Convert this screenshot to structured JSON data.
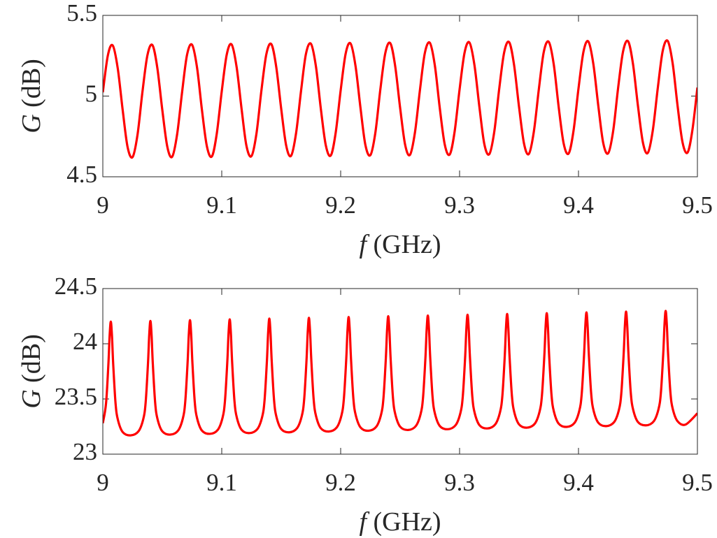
{
  "chart_data": [
    {
      "type": "line",
      "xlabel": "f (GHz)",
      "ylabel": "G (dB)",
      "x": [
        9,
        9.0042,
        9.0083,
        9.0125,
        9.0167,
        9.0208,
        9.025,
        9.0292,
        9.0333,
        9.0375,
        9.0417,
        9.0458,
        9.05,
        9.0542,
        9.0583,
        9.0625,
        9.0667,
        9.0708,
        9.075,
        9.0792,
        9.0833,
        9.0875,
        9.0917,
        9.0958,
        9.1,
        9.1042,
        9.1083,
        9.1125,
        9.1167,
        9.1208,
        9.125,
        9.1292,
        9.1333,
        9.1375,
        9.1417,
        9.1458,
        9.15,
        9.1542,
        9.1583,
        9.1625,
        9.1667,
        9.1708,
        9.175,
        9.1792,
        9.1833,
        9.1875,
        9.1917,
        9.1958,
        9.2,
        9.2042,
        9.2083,
        9.2125,
        9.2167,
        9.2208,
        9.225,
        9.2292,
        9.2333,
        9.2375,
        9.2417,
        9.2458,
        9.25,
        9.2542,
        9.2583,
        9.2625,
        9.2667,
        9.2708,
        9.275,
        9.2792,
        9.2833,
        9.2875,
        9.2917,
        9.2958,
        9.3,
        9.3042,
        9.3083,
        9.3125,
        9.3167,
        9.3208,
        9.325,
        9.3292,
        9.3333,
        9.3375,
        9.3417,
        9.3458,
        9.35,
        9.3542,
        9.3583,
        9.3625,
        9.3667,
        9.3708,
        9.375,
        9.3792,
        9.3833,
        9.3875,
        9.3917,
        9.3958,
        9.4,
        9.4042,
        9.4083,
        9.4125,
        9.4167,
        9.4208,
        9.425,
        9.4292,
        9.4333,
        9.4375,
        9.4417,
        9.4458,
        9.45,
        9.4542,
        9.4583,
        9.4625,
        9.4667,
        9.4708,
        9.475,
        9.4792,
        9.4833,
        9.4875,
        9.4917,
        9.4958,
        9.5
      ],
      "series": [
        {
          "color": "#ff0000",
          "values": [
            5.023,
            5.251,
            5.314,
            5.174,
            4.913,
            4.685,
            4.622,
            4.762,
            5.025,
            5.253,
            5.316,
            5.176,
            4.915,
            4.687,
            4.624,
            4.764,
            5.027,
            5.255,
            5.318,
            5.178,
            4.917,
            4.689,
            4.626,
            4.766,
            5.029,
            5.257,
            5.32,
            5.18,
            4.919,
            4.691,
            4.628,
            4.768,
            5.031,
            5.259,
            5.322,
            5.182,
            4.921,
            4.693,
            4.63,
            4.77,
            5.033,
            5.261,
            5.324,
            5.184,
            4.923,
            4.695,
            4.632,
            4.772,
            5.035,
            5.263,
            5.326,
            5.186,
            4.925,
            4.697,
            4.634,
            4.774,
            5.037,
            5.265,
            5.328,
            5.188,
            4.927,
            4.699,
            4.636,
            4.776,
            5.039,
            5.267,
            5.33,
            5.19,
            4.929,
            4.701,
            4.638,
            4.778,
            5.041,
            5.269,
            5.332,
            5.192,
            4.931,
            4.703,
            4.64,
            4.78,
            5.043,
            5.271,
            5.334,
            5.194,
            4.933,
            4.705,
            4.642,
            4.782,
            5.045,
            5.273,
            5.336,
            5.196,
            4.935,
            4.707,
            4.644,
            4.784,
            5.047,
            5.275,
            5.338,
            5.198,
            4.937,
            4.709,
            4.646,
            4.786,
            5.049,
            5.277,
            5.34,
            5.2,
            4.939,
            4.711,
            4.648,
            4.788,
            5.051,
            5.279,
            5.342,
            5.202,
            4.941,
            4.713,
            4.65,
            4.79,
            5.053
          ]
        }
      ],
      "xlim": [
        9,
        9.5
      ],
      "xticks": [
        9,
        9.1,
        9.2,
        9.3,
        9.4,
        9.5
      ],
      "ylim": [
        4.5,
        5.5
      ],
      "yticks": [
        4.5,
        5,
        5.5
      ]
    },
    {
      "type": "line",
      "xlabel": "f (GHz)",
      "ylabel": "G (dB)",
      "x": [
        9,
        9.0027,
        9.0047,
        9.0057,
        9.0067,
        9.0077,
        9.0087,
        9.0107,
        9.0127,
        9.0167,
        9.0233,
        9.03,
        9.034,
        9.036,
        9.038,
        9.039,
        9.04,
        9.041,
        9.042,
        9.044,
        9.046,
        9.05,
        9.0567,
        9.0633,
        9.0673,
        9.0693,
        9.0713,
        9.0723,
        9.0733,
        9.0743,
        9.0753,
        9.0773,
        9.0793,
        9.0833,
        9.09,
        9.0967,
        9.1007,
        9.1027,
        9.1047,
        9.1057,
        9.1067,
        9.1077,
        9.1087,
        9.1107,
        9.1127,
        9.1167,
        9.1233,
        9.13,
        9.134,
        9.136,
        9.138,
        9.139,
        9.14,
        9.141,
        9.142,
        9.144,
        9.146,
        9.15,
        9.1567,
        9.1633,
        9.1673,
        9.1693,
        9.1713,
        9.1723,
        9.1733,
        9.1743,
        9.1753,
        9.1773,
        9.1793,
        9.1833,
        9.19,
        9.1967,
        9.2007,
        9.2027,
        9.2047,
        9.2057,
        9.2067,
        9.2077,
        9.2087,
        9.2107,
        9.2127,
        9.2167,
        9.2233,
        9.23,
        9.234,
        9.236,
        9.238,
        9.239,
        9.24,
        9.241,
        9.242,
        9.244,
        9.246,
        9.25,
        9.2567,
        9.2633,
        9.2673,
        9.2693,
        9.2713,
        9.2723,
        9.2733,
        9.2743,
        9.2753,
        9.2773,
        9.2793,
        9.2833,
        9.29,
        9.2967,
        9.3007,
        9.3027,
        9.3047,
        9.3057,
        9.3067,
        9.3077,
        9.3087,
        9.3107,
        9.3127,
        9.3167,
        9.3233,
        9.33,
        9.334,
        9.336,
        9.338,
        9.339,
        9.34,
        9.341,
        9.342,
        9.344,
        9.346,
        9.35,
        9.3567,
        9.3633,
        9.3673,
        9.3693,
        9.3713,
        9.3723,
        9.3733,
        9.3743,
        9.3753,
        9.3773,
        9.3793,
        9.3833,
        9.39,
        9.3967,
        9.4007,
        9.4027,
        9.4047,
        9.4057,
        9.4067,
        9.4077,
        9.4087,
        9.4107,
        9.4127,
        9.4167,
        9.4233,
        9.43,
        9.434,
        9.436,
        9.438,
        9.439,
        9.44,
        9.441,
        9.442,
        9.444,
        9.446,
        9.45,
        9.4567,
        9.4633,
        9.4673,
        9.4693,
        9.4713,
        9.4723,
        9.4733,
        9.4743,
        9.4753,
        9.4773,
        9.4793,
        9.4833,
        9.49,
        9.5
      ],
      "series": [
        {
          "color": "#ff0000",
          "values": [
            23.28,
            23.46,
            23.82,
            24.07,
            24.2,
            24.07,
            23.82,
            23.46,
            23.31,
            23.2,
            23.17,
            23.207,
            23.317,
            23.467,
            23.827,
            24.077,
            24.207,
            24.077,
            23.827,
            23.467,
            23.317,
            23.207,
            23.177,
            23.214,
            23.324,
            23.474,
            23.834,
            24.084,
            24.214,
            24.084,
            23.834,
            23.474,
            23.324,
            23.214,
            23.184,
            23.221,
            23.331,
            23.481,
            23.841,
            24.091,
            24.221,
            24.091,
            23.841,
            23.481,
            23.331,
            23.221,
            23.191,
            23.228,
            23.338,
            23.488,
            23.848,
            24.098,
            24.228,
            24.098,
            23.848,
            23.488,
            23.338,
            23.228,
            23.198,
            23.235,
            23.345,
            23.495,
            23.855,
            24.105,
            24.235,
            24.105,
            23.855,
            23.495,
            23.345,
            23.235,
            23.205,
            23.242,
            23.352,
            23.502,
            23.862,
            24.112,
            24.242,
            24.112,
            23.862,
            23.502,
            23.352,
            23.242,
            23.212,
            23.249,
            23.359,
            23.509,
            23.869,
            24.119,
            24.249,
            24.119,
            23.869,
            23.509,
            23.359,
            23.249,
            23.219,
            23.256,
            23.366,
            23.516,
            23.876,
            24.126,
            24.256,
            24.126,
            23.876,
            23.516,
            23.366,
            23.256,
            23.226,
            23.263,
            23.373,
            23.523,
            23.883,
            24.133,
            24.263,
            24.133,
            23.883,
            23.523,
            23.373,
            23.263,
            23.233,
            23.27,
            23.38,
            23.53,
            23.89,
            24.14,
            24.27,
            24.14,
            23.89,
            23.53,
            23.38,
            23.27,
            23.24,
            23.277,
            23.387,
            23.537,
            23.897,
            24.147,
            24.277,
            24.147,
            23.897,
            23.537,
            23.387,
            23.277,
            23.247,
            23.284,
            23.394,
            23.544,
            23.904,
            24.154,
            24.284,
            24.154,
            23.904,
            23.544,
            23.394,
            23.284,
            23.254,
            23.291,
            23.401,
            23.551,
            23.911,
            24.161,
            24.291,
            24.161,
            23.911,
            23.551,
            23.401,
            23.291,
            23.261,
            23.298,
            23.408,
            23.558,
            23.918,
            24.168,
            24.298,
            24.168,
            23.918,
            23.558,
            23.408,
            23.298,
            23.268,
            23.37
          ]
        }
      ],
      "xlim": [
        9,
        9.5
      ],
      "xticks": [
        9,
        9.1,
        9.2,
        9.3,
        9.4,
        9.5
      ],
      "ylim": [
        23,
        24.5
      ],
      "yticks": [
        23,
        23.5,
        24,
        24.5
      ]
    }
  ]
}
